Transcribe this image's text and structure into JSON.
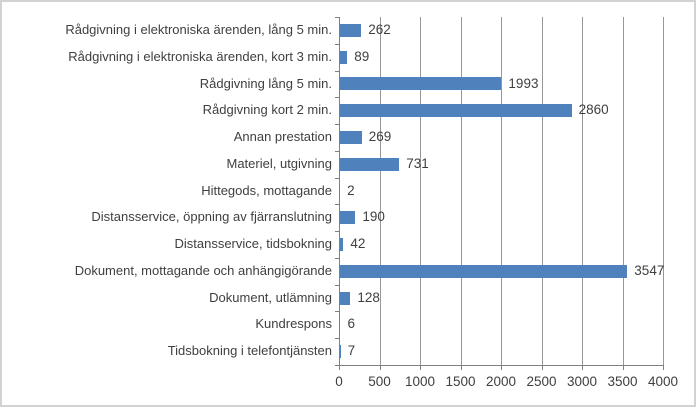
{
  "chart_data": {
    "type": "bar",
    "orientation": "horizontal",
    "title": "",
    "xlabel": "",
    "ylabel": "",
    "categories": [
      "Rådgivning i elektroniska ärenden, lång 5 min.",
      "Rådgivning i elektroniska ärenden, kort 3 min.",
      "Rådgivning lång 5 min.",
      "Rådgivning kort 2 min.",
      "Annan prestation",
      "Materiel, utgivning",
      "Hittegods, mottagande",
      "Distansservice, öppning av fjärranslutning",
      "Distansservice, tidsbokning",
      "Dokument, mottagande och anhängigörande",
      "Dokument, utlämning",
      "Kundrespons",
      "Tidsbokning i telefontjänsten"
    ],
    "values": [
      262,
      89,
      1993,
      2860,
      269,
      731,
      2,
      190,
      42,
      3547,
      128,
      6,
      7
    ],
    "data_labels": [
      "262",
      "89",
      "1993",
      "2860",
      "269",
      "731",
      "2",
      "190",
      "42",
      "3547",
      "128",
      "6",
      "7"
    ],
    "xlim": [
      0,
      4000
    ],
    "xticks": [
      "0",
      "500",
      "1000",
      "1500",
      "2000",
      "2500",
      "3000",
      "3500",
      "4000"
    ],
    "grid": true,
    "legend": false,
    "data_labels_shown": true,
    "colors": {
      "bar": "#4F81BD",
      "gridline": "#979797",
      "axis": "#7f7f7f",
      "text": "#3f3f3f",
      "background": "#ffffff",
      "frame_border": "#d2d2d2"
    }
  }
}
